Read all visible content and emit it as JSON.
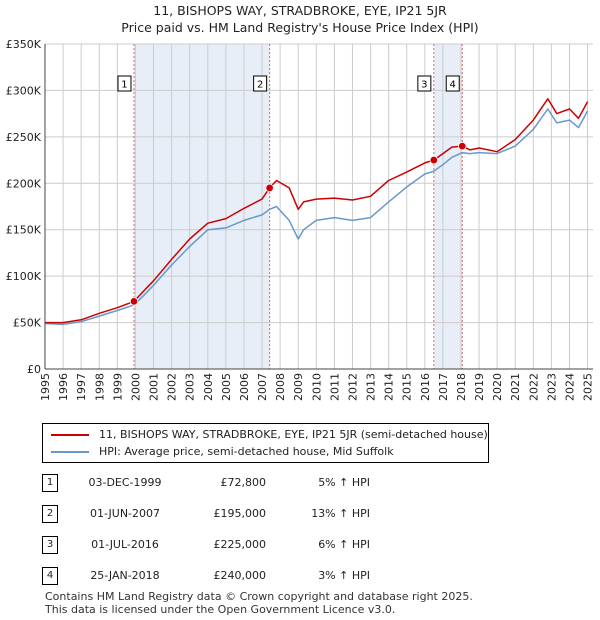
{
  "title_line1": "11, BISHOPS WAY, STRADBROKE, EYE, IP21 5JR",
  "title_line2": "Price paid vs. HM Land Registry's House Price Index (HPI)",
  "colors": {
    "property": "#cc0000",
    "hpi": "#6699cc",
    "shade": "#e8eef8",
    "vline": "#dd6666",
    "grid": "#cccccc"
  },
  "legend": {
    "property_label": "11, BISHOPS WAY, STRADBROKE, EYE, IP21 5JR (semi-detached house)",
    "hpi_label": "HPI: Average price, semi-detached house, Mid Suffolk"
  },
  "chart_data": {
    "type": "line",
    "title": "Price paid vs. HM Land Registry's House Price Index (HPI)",
    "xlabel": "",
    "ylabel": "",
    "xlim": [
      1995,
      2025.3
    ],
    "ylim": [
      0,
      350000
    ],
    "yticks": [
      0,
      50000,
      100000,
      150000,
      200000,
      250000,
      300000,
      350000
    ],
    "ytick_labels": [
      "£0",
      "£50K",
      "£100K",
      "£150K",
      "£200K",
      "£250K",
      "£300K",
      "£350K"
    ],
    "xticks": [
      1995,
      1996,
      1997,
      1998,
      1999,
      2000,
      2001,
      2002,
      2003,
      2004,
      2005,
      2006,
      2007,
      2008,
      2009,
      2010,
      2011,
      2012,
      2013,
      2014,
      2015,
      2016,
      2017,
      2018,
      2019,
      2020,
      2021,
      2022,
      2023,
      2024,
      2025
    ],
    "shaded_periods": [
      [
        1999.92,
        2007.42
      ],
      [
        2016.5,
        2018.07
      ]
    ],
    "series": [
      {
        "name": "11, BISHOPS WAY, STRADBROKE, EYE, IP21 5JR (semi-detached house)",
        "x": [
          1995,
          1996,
          1997,
          1998,
          1999,
          1999.92,
          2000.5,
          2001,
          2002,
          2003,
          2004,
          2005,
          2006,
          2007,
          2007.42,
          2007.8,
          2008.5,
          2009,
          2009.3,
          2010,
          2011,
          2012,
          2013,
          2014,
          2015,
          2016,
          2016.5,
          2017,
          2017.5,
          2018.07,
          2018.5,
          2019,
          2020,
          2021,
          2022,
          2022.8,
          2023.3,
          2024,
          2024.5,
          2025
        ],
        "y": [
          50000,
          50000,
          53000,
          60000,
          66000,
          72800,
          85000,
          95000,
          118000,
          140000,
          157000,
          162000,
          173000,
          183000,
          195000,
          203000,
          195000,
          172000,
          180000,
          183000,
          184000,
          182000,
          186000,
          203000,
          212000,
          222000,
          225000,
          232000,
          239000,
          240000,
          236000,
          238000,
          234000,
          247000,
          268000,
          291000,
          275000,
          280000,
          270000,
          288000
        ]
      },
      {
        "name": "HPI: Average price, semi-detached house, Mid Suffolk",
        "x": [
          1995,
          1996,
          1997,
          1998,
          1999,
          1999.92,
          2000.5,
          2001,
          2002,
          2003,
          2004,
          2005,
          2006,
          2007,
          2007.42,
          2007.8,
          2008.5,
          2009,
          2009.3,
          2010,
          2011,
          2012,
          2013,
          2014,
          2015,
          2016,
          2016.5,
          2017,
          2017.5,
          2018.07,
          2018.5,
          2019,
          2020,
          2021,
          2022,
          2022.8,
          2023.3,
          2024,
          2024.5,
          2025
        ],
        "y": [
          49000,
          48000,
          51000,
          57000,
          63000,
          69000,
          80000,
          90000,
          112000,
          132000,
          150000,
          152000,
          160000,
          166000,
          172000,
          175000,
          160000,
          140000,
          150000,
          160000,
          163000,
          160000,
          163000,
          180000,
          196000,
          210000,
          213000,
          220000,
          228000,
          233000,
          232000,
          233000,
          232000,
          240000,
          258000,
          280000,
          265000,
          268000,
          260000,
          278000
        ]
      }
    ],
    "annotations": [
      {
        "label": "1",
        "x": 1999.92,
        "y": 72800
      },
      {
        "label": "2",
        "x": 2007.42,
        "y": 195000
      },
      {
        "label": "3",
        "x": 2016.5,
        "y": 225000
      },
      {
        "label": "4",
        "x": 2018.07,
        "y": 240000
      }
    ]
  },
  "transactions": [
    {
      "num": "1",
      "date": "03-DEC-1999",
      "price": "£72,800",
      "hpi": "5% ↑ HPI"
    },
    {
      "num": "2",
      "date": "01-JUN-2007",
      "price": "£195,000",
      "hpi": "13% ↑ HPI"
    },
    {
      "num": "3",
      "date": "01-JUL-2016",
      "price": "£225,000",
      "hpi": "6% ↑ HPI"
    },
    {
      "num": "4",
      "date": "25-JAN-2018",
      "price": "£240,000",
      "hpi": "3% ↑ HPI"
    }
  ],
  "footer_line1": "Contains HM Land Registry data © Crown copyright and database right 2025.",
  "footer_line2": "This data is licensed under the Open Government Licence v3.0."
}
